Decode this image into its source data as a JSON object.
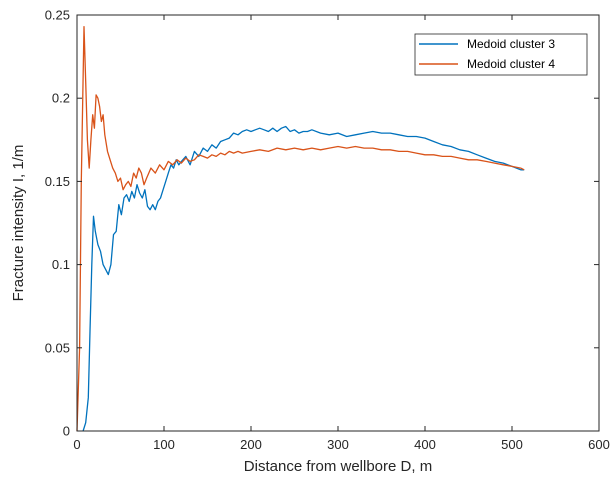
{
  "chart_data": {
    "type": "line",
    "title": "",
    "xlabel": "Distance from wellbore D, m",
    "ylabel": "Fracture intensity I, 1/m",
    "xlim": [
      0,
      600
    ],
    "ylim": [
      0,
      0.25
    ],
    "xticks": [
      0,
      100,
      200,
      300,
      400,
      500,
      600
    ],
    "yticks": [
      0,
      0.05,
      0.1,
      0.15,
      0.2,
      0.25
    ],
    "xtick_labels": [
      "0",
      "100",
      "200",
      "300",
      "400",
      "500",
      "600"
    ],
    "ytick_labels": [
      "0",
      "0.05",
      "0.1",
      "0.15",
      "0.2",
      "0.25"
    ],
    "grid": false,
    "legend_position": "top-right",
    "series": [
      {
        "name": "Medoid cluster 3",
        "color": "#0072BD",
        "x": [
          7,
          10,
          13,
          15,
          17,
          19,
          21,
          24,
          27,
          30,
          33,
          36,
          39,
          42,
          45,
          48,
          51,
          54,
          57,
          60,
          63,
          66,
          69,
          72,
          75,
          78,
          81,
          84,
          87,
          90,
          93,
          96,
          99,
          102,
          105,
          108,
          111,
          114,
          117,
          120,
          125,
          130,
          135,
          140,
          145,
          150,
          155,
          160,
          165,
          170,
          175,
          180,
          185,
          190,
          195,
          200,
          205,
          210,
          215,
          220,
          225,
          230,
          235,
          240,
          245,
          250,
          255,
          260,
          265,
          270,
          280,
          290,
          300,
          310,
          320,
          330,
          340,
          350,
          360,
          370,
          380,
          390,
          400,
          410,
          420,
          430,
          440,
          450,
          460,
          470,
          480,
          490,
          500,
          510,
          514
        ],
        "y": [
          0,
          0.005,
          0.02,
          0.06,
          0.1,
          0.129,
          0.12,
          0.112,
          0.108,
          0.1,
          0.097,
          0.094,
          0.1,
          0.118,
          0.12,
          0.136,
          0.13,
          0.14,
          0.142,
          0.138,
          0.144,
          0.14,
          0.148,
          0.143,
          0.14,
          0.145,
          0.135,
          0.133,
          0.136,
          0.133,
          0.138,
          0.14,
          0.145,
          0.15,
          0.155,
          0.16,
          0.158,
          0.163,
          0.16,
          0.162,
          0.165,
          0.16,
          0.168,
          0.165,
          0.17,
          0.168,
          0.172,
          0.17,
          0.174,
          0.175,
          0.176,
          0.179,
          0.178,
          0.18,
          0.181,
          0.18,
          0.181,
          0.182,
          0.181,
          0.18,
          0.182,
          0.18,
          0.182,
          0.183,
          0.18,
          0.181,
          0.179,
          0.18,
          0.18,
          0.181,
          0.179,
          0.178,
          0.179,
          0.177,
          0.178,
          0.179,
          0.18,
          0.179,
          0.179,
          0.178,
          0.177,
          0.177,
          0.176,
          0.174,
          0.172,
          0.171,
          0.169,
          0.168,
          0.166,
          0.164,
          0.162,
          0.161,
          0.159,
          0.157,
          0.157
        ]
      },
      {
        "name": "Medoid cluster 4",
        "color": "#D95319",
        "x": [
          0,
          3,
          5,
          8,
          10,
          12,
          14,
          16,
          18,
          20,
          22,
          24,
          26,
          28,
          30,
          32,
          35,
          38,
          41,
          44,
          47,
          50,
          53,
          56,
          59,
          62,
          65,
          68,
          71,
          74,
          77,
          80,
          85,
          90,
          95,
          100,
          105,
          110,
          115,
          120,
          125,
          130,
          135,
          140,
          145,
          150,
          155,
          160,
          165,
          170,
          175,
          180,
          185,
          190,
          200,
          210,
          220,
          230,
          240,
          250,
          260,
          270,
          280,
          290,
          300,
          310,
          320,
          330,
          340,
          350,
          360,
          370,
          380,
          390,
          400,
          410,
          420,
          430,
          440,
          450,
          460,
          470,
          480,
          490,
          500,
          510,
          514
        ],
        "y": [
          0,
          0.05,
          0.15,
          0.243,
          0.21,
          0.175,
          0.158,
          0.175,
          0.19,
          0.182,
          0.202,
          0.2,
          0.195,
          0.186,
          0.19,
          0.178,
          0.168,
          0.163,
          0.158,
          0.155,
          0.15,
          0.152,
          0.145,
          0.148,
          0.15,
          0.147,
          0.155,
          0.152,
          0.158,
          0.155,
          0.148,
          0.152,
          0.158,
          0.155,
          0.16,
          0.157,
          0.162,
          0.16,
          0.163,
          0.161,
          0.164,
          0.162,
          0.163,
          0.166,
          0.165,
          0.164,
          0.166,
          0.165,
          0.167,
          0.166,
          0.168,
          0.167,
          0.168,
          0.167,
          0.168,
          0.169,
          0.168,
          0.17,
          0.169,
          0.17,
          0.169,
          0.17,
          0.169,
          0.17,
          0.171,
          0.17,
          0.171,
          0.17,
          0.17,
          0.169,
          0.169,
          0.168,
          0.168,
          0.167,
          0.166,
          0.166,
          0.165,
          0.165,
          0.164,
          0.163,
          0.163,
          0.162,
          0.161,
          0.16,
          0.159,
          0.158,
          0.157
        ]
      }
    ]
  }
}
